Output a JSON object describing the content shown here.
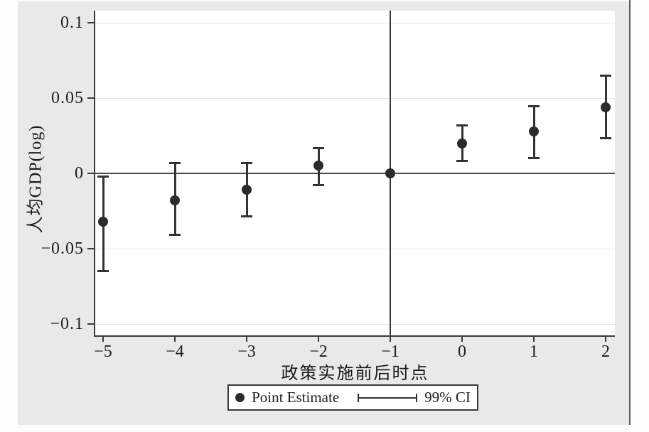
{
  "figure": {
    "panel_bg": "#e9e9e9",
    "axis_color": "#3a3a3a",
    "marker_color": "#2b2b2b"
  },
  "chart_data": {
    "type": "scatter",
    "title": "",
    "xlabel": "政策实施前后时点",
    "ylabel": "人均GDP(log)",
    "xlim": [
      -5.1,
      2.15
    ],
    "ylim": [
      -0.108,
      0.108
    ],
    "grid": "horizontal-light",
    "gridline_values": [
      0.1,
      0.05,
      -0.05,
      -0.1
    ],
    "zero_line": true,
    "reference_line_x": -1,
    "x_ticks": [
      {
        "value": -5,
        "label": "−5"
      },
      {
        "value": -4,
        "label": "−4"
      },
      {
        "value": -3,
        "label": "−3"
      },
      {
        "value": -2,
        "label": "−2"
      },
      {
        "value": -1,
        "label": "−1"
      },
      {
        "value": 0,
        "label": "0"
      },
      {
        "value": 1,
        "label": "1"
      },
      {
        "value": 2,
        "label": "2"
      }
    ],
    "y_ticks": [
      {
        "value": 0.1,
        "label": "0.1"
      },
      {
        "value": 0.05,
        "label": "0.05"
      },
      {
        "value": 0,
        "label": "0"
      },
      {
        "value": -0.05,
        "label": "−0.05"
      },
      {
        "value": -0.1,
        "label": "−0.1"
      }
    ],
    "points": [
      {
        "t": -5,
        "estimate": -0.032,
        "ci_low": -0.065,
        "ci_high": -0.002
      },
      {
        "t": -4,
        "estimate": -0.018,
        "ci_low": -0.041,
        "ci_high": 0.007
      },
      {
        "t": -3,
        "estimate": -0.011,
        "ci_low": -0.029,
        "ci_high": 0.007
      },
      {
        "t": -2,
        "estimate": 0.005,
        "ci_low": -0.008,
        "ci_high": 0.017
      },
      {
        "t": -1,
        "estimate": 0.0,
        "ci_low": null,
        "ci_high": null
      },
      {
        "t": 0,
        "estimate": 0.02,
        "ci_low": 0.008,
        "ci_high": 0.032
      },
      {
        "t": 1,
        "estimate": 0.028,
        "ci_low": 0.01,
        "ci_high": 0.045
      },
      {
        "t": 2,
        "estimate": 0.044,
        "ci_low": 0.023,
        "ci_high": 0.065
      }
    ],
    "legend": {
      "position": "bottom-center",
      "entries": [
        {
          "marker": "dot",
          "label": "Point Estimate"
        },
        {
          "marker": "ci-bar",
          "label": "99% CI"
        }
      ]
    }
  }
}
